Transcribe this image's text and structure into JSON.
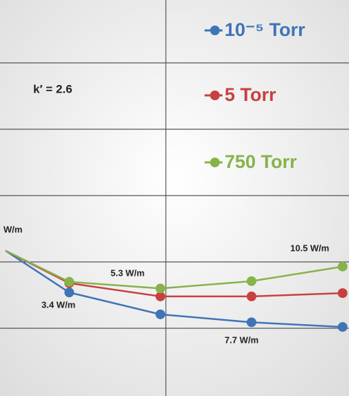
{
  "chart_data": {
    "type": "line",
    "x": [
      -0.7,
      0,
      1,
      2,
      3
    ],
    "xlim": [
      -0.76,
      3.07
    ],
    "xticks": [
      1.06
    ],
    "ylim": [
      0,
      6
    ],
    "yticks": [
      1,
      2,
      3,
      4,
      5
    ],
    "grid": true,
    "series": [
      {
        "name": "10⁻⁵ Torr",
        "color": "#3f74b5",
        "values": [
          2.17,
          1.54,
          1.21,
          1.09,
          1.02
        ]
      },
      {
        "name": "5 Torr",
        "color": "#c8403f",
        "values": [
          2.17,
          1.68,
          1.48,
          1.48,
          1.53
        ]
      },
      {
        "name": "750 Torr",
        "color": "#86b34a",
        "values": [
          2.17,
          1.7,
          1.6,
          1.71,
          1.93
        ]
      }
    ],
    "annotations": [
      "k′ = 2.6",
      "W/m",
      "3.4 W/m",
      "5.3 W/m",
      "7.7 W/m",
      "10.5 W/m"
    ]
  }
}
